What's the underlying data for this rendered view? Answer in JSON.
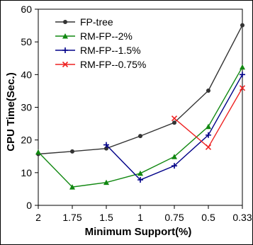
{
  "chart_data": {
    "type": "line",
    "xlabel": "Minimum Support(%)",
    "ylabel": "CPU Time(Sec.)",
    "categories": [
      "2",
      "1.75",
      "1.5",
      "1",
      "0.75",
      "0.5",
      "0.33"
    ],
    "ylim": [
      0,
      60
    ],
    "yticks": [
      0,
      10,
      20,
      30,
      40,
      50,
      60
    ],
    "grid": false,
    "legend_position": "top-left",
    "series": [
      {
        "name": "FP-tree",
        "marker": "circle",
        "color": "#333333",
        "values": [
          15.7,
          16.5,
          17.4,
          21.2,
          25.3,
          35.1,
          55.1
        ]
      },
      {
        "name": "RM-FP--2%",
        "marker": "triangle",
        "color": "#118811",
        "values": [
          16.3,
          5.6,
          7.0,
          9.8,
          14.9,
          24.1,
          42.3
        ]
      },
      {
        "name": "RM-FP--1.5%",
        "marker": "plus",
        "color": "#000088",
        "values": [
          null,
          null,
          18.5,
          7.8,
          12.1,
          21.5,
          40.0
        ]
      },
      {
        "name": "RM-FP--0.75%",
        "marker": "x",
        "color": "#ee2222",
        "values": [
          null,
          null,
          null,
          null,
          26.6,
          17.8,
          35.9
        ]
      }
    ]
  }
}
